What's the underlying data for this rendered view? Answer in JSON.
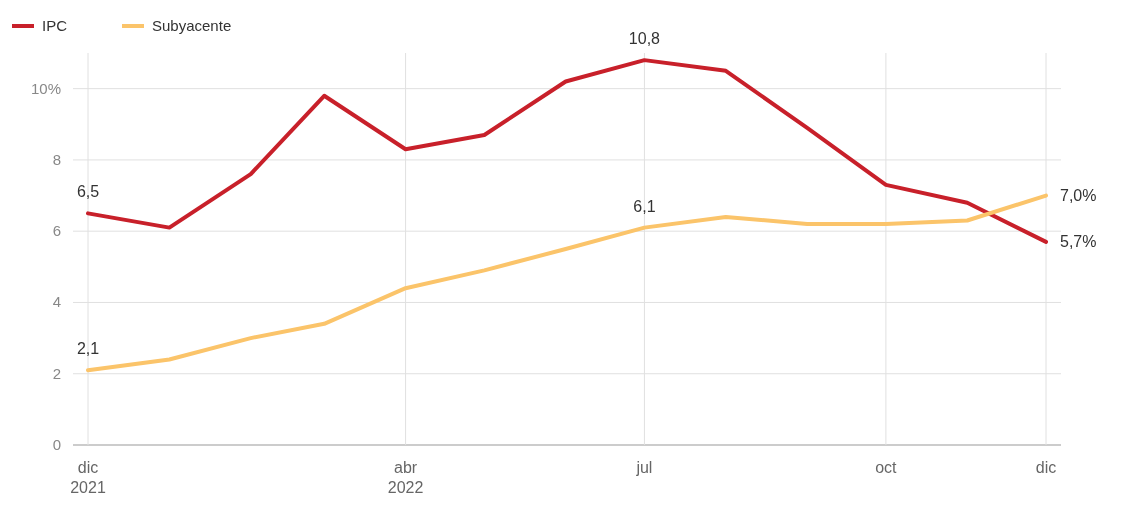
{
  "chart_data": {
    "type": "line",
    "x": [
      "2021-12",
      "2022-01",
      "2022-02",
      "2022-03",
      "2022-04",
      "2022-05",
      "2022-06",
      "2022-07",
      "2022-08",
      "2022-09",
      "2022-10",
      "2022-11",
      "2022-12"
    ],
    "series": [
      {
        "name": "IPC",
        "color": "#c8202a",
        "values": [
          6.5,
          6.1,
          7.6,
          9.8,
          8.3,
          8.7,
          10.2,
          10.8,
          10.5,
          8.9,
          7.3,
          6.8,
          5.7
        ],
        "value_labels": [
          "6,5",
          null,
          null,
          null,
          null,
          null,
          null,
          "10,8",
          null,
          null,
          null,
          null,
          "5,7%"
        ]
      },
      {
        "name": "Subyacente",
        "color": "#fbc46a",
        "values": [
          2.1,
          2.4,
          3.0,
          3.4,
          4.4,
          4.9,
          5.5,
          6.1,
          6.4,
          6.2,
          6.2,
          6.3,
          7.0
        ],
        "value_labels": [
          "2,1",
          null,
          null,
          null,
          null,
          null,
          null,
          "6,1",
          null,
          null,
          null,
          null,
          "7,0%"
        ]
      }
    ],
    "xlim": [
      "2021-12",
      "2022-12"
    ],
    "xticks": [
      {
        "value": "2021-12",
        "label": "dic\n2021"
      },
      {
        "value": "2022-04",
        "label": "abr\n2022"
      },
      {
        "value": "2022-07",
        "label": "jul"
      },
      {
        "value": "2022-10",
        "label": "oct"
      },
      {
        "value": "2022-12",
        "label": "dic"
      }
    ],
    "ylim": [
      0,
      11
    ],
    "yticks": [
      0,
      2,
      4,
      6,
      8,
      {
        "value": 10,
        "label": "10%"
      }
    ],
    "grid": true,
    "legend": "top left",
    "line_style": "solid"
  }
}
